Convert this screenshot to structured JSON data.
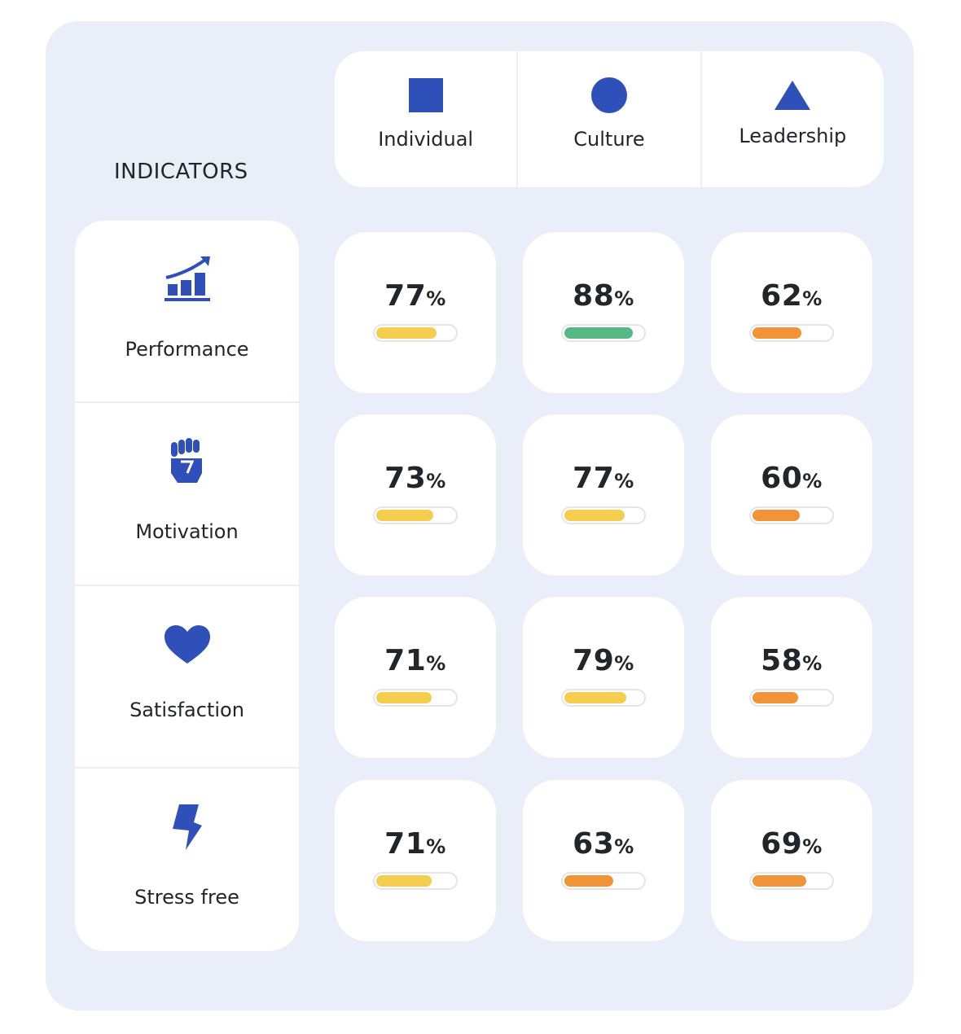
{
  "title": "INDICATORS",
  "columns": [
    {
      "label": "Individual",
      "icon": "square-icon"
    },
    {
      "label": "Culture",
      "icon": "circle-icon"
    },
    {
      "label": "Leadership",
      "icon": "triangle-icon"
    }
  ],
  "rows": [
    {
      "label": "Performance",
      "icon": "growth-chart-icon",
      "values": [
        77,
        88,
        62
      ]
    },
    {
      "label": "Motivation",
      "icon": "fist-icon",
      "values": [
        73,
        77,
        60
      ]
    },
    {
      "label": "Satisfaction",
      "icon": "heart-icon",
      "values": [
        71,
        79,
        58
      ]
    },
    {
      "label": "Stress free",
      "icon": "lightning-icon",
      "values": [
        71,
        63,
        69
      ]
    }
  ],
  "percent_sign": "%",
  "colors": {
    "accent": "#3050b9",
    "high": "#55b985",
    "mid": "#f5cd4f",
    "low": "#f09437",
    "panel": "#e9eef8"
  }
}
